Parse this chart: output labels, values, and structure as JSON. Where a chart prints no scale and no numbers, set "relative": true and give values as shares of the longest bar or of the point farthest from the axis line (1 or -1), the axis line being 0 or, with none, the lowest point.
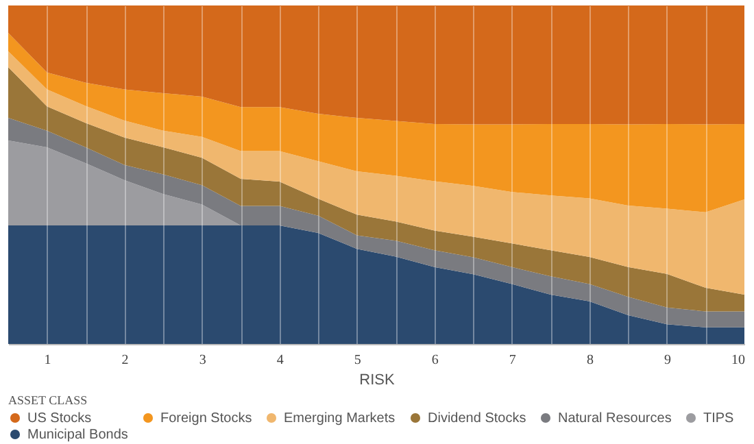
{
  "chart_data": {
    "type": "area",
    "stacked": true,
    "relative": true,
    "xlabel": "RISK",
    "legend_title": "ASSET CLASS",
    "legend": "bottom",
    "grid": "x",
    "marker": "none",
    "x": [
      0.5,
      1,
      1.5,
      2,
      2.5,
      3,
      3.5,
      4,
      4.5,
      5,
      5.5,
      6,
      6.5,
      7,
      7.5,
      8,
      8.5,
      9,
      9.5,
      10
    ],
    "xlim": [
      0.5,
      10
    ],
    "xticks": [
      1,
      {
        "value": 1.5,
        "label": null
      },
      2,
      {
        "value": 2.5,
        "label": null
      },
      3,
      {
        "value": 3.5,
        "label": null
      },
      4,
      {
        "value": 4.5,
        "label": null
      },
      5,
      {
        "value": 5.5,
        "label": null
      },
      6,
      {
        "value": 6.5,
        "label": null
      },
      7,
      {
        "value": 7.5,
        "label": null
      },
      8,
      {
        "value": 8.5,
        "label": null
      },
      9,
      {
        "value": 9.5,
        "label": null
      },
      10
    ],
    "series": [
      {
        "name": "Municipal Bonds",
        "color": "#2b4a6f",
        "values": [
          0.35,
          0.35,
          0.35,
          0.35,
          0.35,
          0.35,
          0.35,
          0.35,
          0.328,
          0.281,
          0.258,
          0.227,
          0.206,
          0.177,
          0.146,
          0.126,
          0.085,
          0.058,
          0.049,
          0.049
        ]
      },
      {
        "name": "TIPS",
        "color": "#9c9ca0",
        "values": [
          0.251,
          0.231,
          0.184,
          0.134,
          0.093,
          0.062,
          0,
          0,
          0,
          0,
          0,
          0,
          0,
          0,
          0,
          0,
          0,
          0,
          0,
          0
        ]
      },
      {
        "name": "Natural Resources",
        "color": "#7a7b80",
        "values": [
          0.067,
          0.049,
          0.047,
          0.045,
          0.058,
          0.057,
          0.058,
          0.058,
          0.051,
          0.04,
          0.047,
          0.05,
          0.05,
          0.05,
          0.054,
          0.051,
          0.054,
          0.05,
          0.047,
          0.047
        ]
      },
      {
        "name": "Dividend Stocks",
        "color": "#9a7639",
        "values": [
          0.15,
          0.072,
          0.072,
          0.081,
          0.08,
          0.081,
          0.08,
          0.072,
          0.05,
          0.061,
          0.057,
          0.058,
          0.061,
          0.07,
          0.077,
          0.08,
          0.088,
          0.099,
          0.07,
          0.05
        ]
      },
      {
        "name": "Emerging Markets",
        "color": "#f0b76e",
        "values": [
          0.047,
          0.05,
          0.05,
          0.05,
          0.049,
          0.062,
          0.082,
          0.09,
          0.111,
          0.128,
          0.135,
          0.146,
          0.15,
          0.152,
          0.162,
          0.173,
          0.182,
          0.193,
          0.223,
          0.281
        ]
      },
      {
        "name": "Foreign Stocks",
        "color": "#f3961f",
        "values": [
          0.054,
          0.05,
          0.069,
          0.092,
          0.111,
          0.119,
          0.13,
          0.13,
          0.14,
          0.158,
          0.162,
          0.169,
          0.182,
          0.2,
          0.211,
          0.22,
          0.24,
          0.25,
          0.26,
          0.223
        ]
      },
      {
        "name": "US Stocks",
        "color": "#d4691b",
        "values": [
          0.081,
          0.198,
          0.228,
          0.248,
          0.259,
          0.269,
          0.3,
          0.3,
          0.32,
          0.332,
          0.341,
          0.35,
          0.351,
          0.351,
          0.35,
          0.35,
          0.351,
          0.35,
          0.351,
          0.35
        ]
      }
    ]
  }
}
